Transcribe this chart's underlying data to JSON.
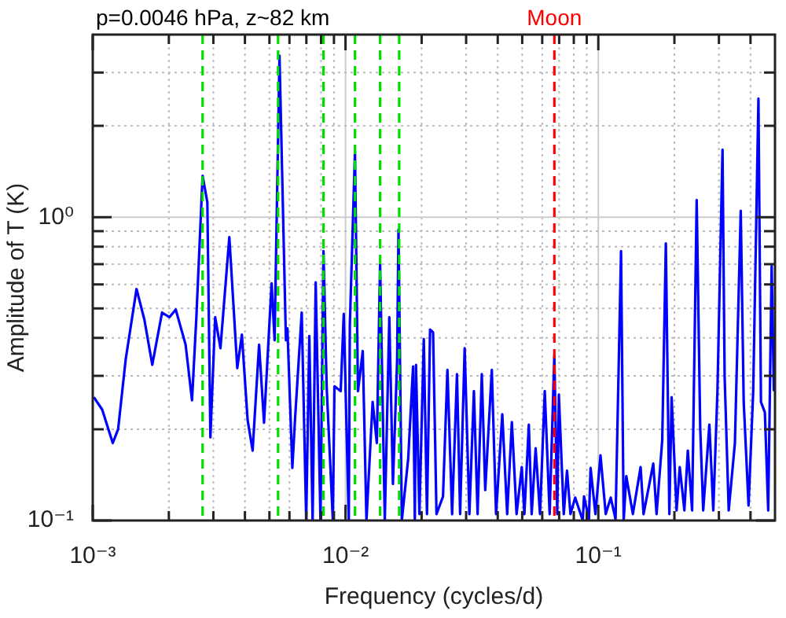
{
  "chart_data": {
    "type": "line",
    "title": "p=0.0046 hPa, z~82 km",
    "xlabel": "Frequency (cycles/d)",
    "ylabel": "Amplitude of T (K)",
    "log": "xy",
    "grid": true,
    "line_style": "solid",
    "xlim": [
      0.001,
      0.5
    ],
    "ylim": [
      0.1,
      4
    ],
    "xticks": [
      {
        "value": 0.001,
        "label": "10⁻³"
      },
      {
        "value": 0.002,
        "label": null
      },
      {
        "value": 0.003,
        "label": null
      },
      {
        "value": 0.004,
        "label": null
      },
      {
        "value": 0.005,
        "label": null
      },
      {
        "value": 0.006,
        "label": null
      },
      {
        "value": 0.007,
        "label": null
      },
      {
        "value": 0.008,
        "label": null
      },
      {
        "value": 0.009,
        "label": null
      },
      {
        "value": 0.01,
        "label": "10⁻²"
      },
      {
        "value": 0.02,
        "label": null
      },
      {
        "value": 0.03,
        "label": null
      },
      {
        "value": 0.04,
        "label": null
      },
      {
        "value": 0.05,
        "label": null
      },
      {
        "value": 0.06,
        "label": null
      },
      {
        "value": 0.07,
        "label": null
      },
      {
        "value": 0.08,
        "label": null
      },
      {
        "value": 0.09,
        "label": null
      },
      {
        "value": 0.1,
        "label": "10⁻¹"
      },
      {
        "value": 0.2,
        "label": null
      },
      {
        "value": 0.3,
        "label": null
      },
      {
        "value": 0.4,
        "label": null
      }
    ],
    "yticks": [
      {
        "value": 0.1,
        "label": "10⁻¹"
      },
      {
        "value": 0.2,
        "label": null
      },
      {
        "value": 0.3,
        "label": null
      },
      {
        "value": 0.4,
        "label": null
      },
      {
        "value": 0.5,
        "label": null
      },
      {
        "value": 0.6,
        "label": null
      },
      {
        "value": 0.7,
        "label": null
      },
      {
        "value": 0.8,
        "label": null
      },
      {
        "value": 0.9,
        "label": null
      },
      {
        "value": 1,
        "label": "10⁰"
      },
      {
        "value": 2,
        "label": null
      },
      {
        "value": 3,
        "label": null
      }
    ],
    "ref_lines": [
      {
        "axis": "x",
        "value": 0.00272,
        "color": "#00e000",
        "line_style": "dashed"
      },
      {
        "axis": "x",
        "value": 0.00541,
        "color": "#00e000",
        "line_style": "dashed"
      },
      {
        "axis": "x",
        "value": 0.00818,
        "color": "#00e000",
        "line_style": "dashed"
      },
      {
        "axis": "x",
        "value": 0.0109,
        "color": "#00e000",
        "line_style": "dashed"
      },
      {
        "axis": "x",
        "value": 0.0137,
        "color": "#00e000",
        "line_style": "dashed"
      },
      {
        "axis": "x",
        "value": 0.0163,
        "color": "#00e000",
        "line_style": "dashed"
      },
      {
        "axis": "x",
        "value": 0.067,
        "label": "Moon",
        "color": "#ff0000",
        "line_style": "dashed"
      }
    ],
    "series": [
      {
        "color": "#0000ff",
        "x": [
          0.00101,
          0.00109,
          0.0012,
          0.00126,
          0.00135,
          0.00149,
          0.0016,
          0.00172,
          0.00188,
          0.00201,
          0.00213,
          0.00233,
          0.00247,
          0.00257,
          0.00272,
          0.00284,
          0.00292,
          0.00305,
          0.0032,
          0.00347,
          0.00373,
          0.00389,
          0.0041,
          0.00429,
          0.00455,
          0.00476,
          0.0051,
          0.00524,
          0.00548,
          0.00581,
          0.00589,
          0.00616,
          0.00632,
          0.00671,
          0.00699,
          0.00719,
          0.00741,
          0.00762,
          0.00796,
          0.00818,
          0.00842,
          0.00891,
          0.00904,
          0.00957,
          0.00984,
          0.0103,
          0.0104,
          0.0109,
          0.0112,
          0.0117,
          0.0121,
          0.0128,
          0.0133,
          0.0137,
          0.0143,
          0.0149,
          0.0154,
          0.016,
          0.0162,
          0.0167,
          0.0177,
          0.0185,
          0.0188,
          0.019,
          0.0196,
          0.0204,
          0.021,
          0.0216,
          0.0222,
          0.0229,
          0.0243,
          0.0253,
          0.0264,
          0.0276,
          0.0284,
          0.0296,
          0.0309,
          0.0322,
          0.0333,
          0.0346,
          0.0357,
          0.0379,
          0.0394,
          0.0417,
          0.0436,
          0.0455,
          0.0475,
          0.0498,
          0.051,
          0.0531,
          0.0545,
          0.0565,
          0.0588,
          0.0614,
          0.0642,
          0.067,
          0.0688,
          0.0698,
          0.073,
          0.0752,
          0.0776,
          0.081,
          0.0868,
          0.0878,
          0.0918,
          0.0932,
          0.0974,
          0.102,
          0.107,
          0.112,
          0.117,
          0.123,
          0.126,
          0.129,
          0.137,
          0.147,
          0.151,
          0.165,
          0.17,
          0.179,
          0.185,
          0.191,
          0.195,
          0.204,
          0.21,
          0.219,
          0.226,
          0.235,
          0.245,
          0.253,
          0.26,
          0.275,
          0.285,
          0.296,
          0.31,
          0.316,
          0.328,
          0.347,
          0.366,
          0.376,
          0.393,
          0.41,
          0.43,
          0.44,
          0.456,
          0.47,
          0.485,
          0.495
        ],
        "values": [
          0.255,
          0.232,
          0.18,
          0.2,
          0.34,
          0.58,
          0.46,
          0.326,
          0.485,
          0.468,
          0.496,
          0.38,
          0.249,
          0.468,
          1.37,
          1.12,
          0.188,
          0.468,
          0.37,
          0.86,
          0.318,
          0.41,
          0.214,
          0.17,
          0.38,
          0.21,
          0.605,
          0.393,
          3.41,
          0.393,
          0.43,
          0.149,
          0.219,
          0.485,
          0.1,
          0.406,
          0.1,
          0.61,
          0.1,
          0.773,
          0.277,
          0.1,
          0.277,
          0.267,
          0.48,
          0.1,
          0.44,
          1.65,
          0.267,
          0.362,
          0.1,
          0.246,
          0.18,
          0.704,
          0.1,
          0.468,
          0.132,
          0.337,
          0.91,
          0.1,
          0.16,
          0.322,
          0.1,
          0.326,
          0.105,
          0.397,
          0.105,
          0.426,
          0.417,
          0.105,
          0.12,
          0.314,
          0.105,
          0.304,
          0.105,
          0.37,
          0.105,
          0.267,
          0.105,
          0.304,
          0.126,
          0.314,
          0.105,
          0.224,
          0.105,
          0.211,
          0.105,
          0.15,
          0.105,
          0.207,
          0.105,
          0.173,
          0.105,
          0.267,
          0.105,
          0.35,
          0.105,
          0.26,
          0.105,
          0.146,
          0.105,
          0.119,
          0.1,
          0.12,
          0.101,
          0.149,
          0.105,
          0.164,
          0.105,
          0.119,
          0.101,
          0.773,
          0.1,
          0.14,
          0.105,
          0.15,
          0.105,
          0.154,
          0.105,
          0.184,
          0.82,
          0.105,
          0.255,
          0.108,
          0.15,
          0.108,
          0.17,
          0.108,
          1.14,
          0.202,
          0.108,
          0.207,
          0.108,
          0.267,
          1.67,
          0.3,
          0.108,
          0.18,
          1.05,
          0.246,
          0.112,
          0.267,
          2.46,
          0.246,
          0.227,
          0.108,
          0.69,
          0.267
        ]
      }
    ]
  }
}
